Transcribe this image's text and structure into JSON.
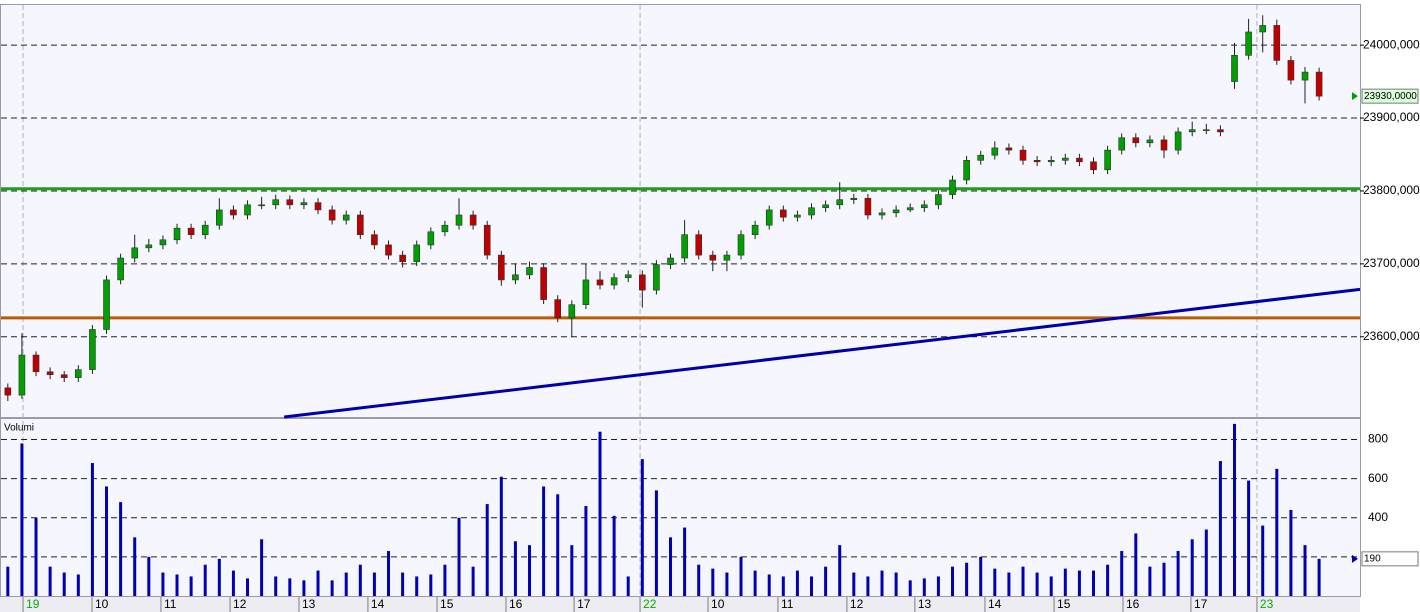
{
  "chart_data": [
    {
      "type": "candlestick",
      "xlim": [
        -0.2,
        95.9
      ],
      "ylim": [
        23490,
        24055
      ],
      "yticks": [
        {
          "value": 24000,
          "label": "24000,000"
        },
        {
          "value": 23900,
          "label": "23900,000"
        },
        {
          "value": 23800,
          "label": "23800,000"
        },
        {
          "value": 23700,
          "label": "23700,000"
        },
        {
          "value": 23600,
          "label": "23600,000"
        }
      ],
      "up_color": "#00a000",
      "down_color": "#c00000",
      "ohlc": [
        [
          23530,
          23536,
          23512,
          23520
        ],
        [
          23520,
          23605,
          23515,
          23575
        ],
        [
          23575,
          23580,
          23546,
          23552
        ],
        [
          23552,
          23558,
          23542,
          23548
        ],
        [
          23548,
          23553,
          23538,
          23544
        ],
        [
          23544,
          23561,
          23538,
          23555
        ],
        [
          23555,
          23616,
          23549,
          23610
        ],
        [
          23610,
          23684,
          23604,
          23678
        ],
        [
          23678,
          23714,
          23672,
          23708
        ],
        [
          23708,
          23740,
          23702,
          23722
        ],
        [
          23722,
          23734,
          23716,
          23726
        ],
        [
          23726,
          23739,
          23720,
          23733
        ],
        [
          23733,
          23755,
          23727,
          23749
        ],
        [
          23749,
          23755,
          23734,
          23740
        ],
        [
          23740,
          23759,
          23734,
          23753
        ],
        [
          23753,
          23790,
          23747,
          23774
        ],
        [
          23774,
          23780,
          23761,
          23767
        ],
        [
          23767,
          23787,
          23761,
          23781
        ],
        [
          23781,
          23792,
          23775,
          23781
        ],
        [
          23781,
          23795,
          23775,
          23788
        ],
        [
          23788,
          23794,
          23775,
          23781
        ],
        [
          23781,
          23790,
          23775,
          23784
        ],
        [
          23784,
          23790,
          23768,
          23774
        ],
        [
          23774,
          23780,
          23754,
          23760
        ],
        [
          23760,
          23773,
          23754,
          23767
        ],
        [
          23767,
          23773,
          23734,
          23740
        ],
        [
          23740,
          23746,
          23720,
          23726
        ],
        [
          23726,
          23732,
          23706,
          23712
        ],
        [
          23712,
          23718,
          23695,
          23703
        ],
        [
          23703,
          23732,
          23697,
          23726
        ],
        [
          23726,
          23750,
          23720,
          23744
        ],
        [
          23744,
          23759,
          23738,
          23753
        ],
        [
          23753,
          23790,
          23747,
          23767
        ],
        [
          23767,
          23773,
          23747,
          23753
        ],
        [
          23753,
          23759,
          23706,
          23712
        ],
        [
          23712,
          23718,
          23670,
          23678
        ],
        [
          23678,
          23700,
          23672,
          23685
        ],
        [
          23685,
          23703,
          23679,
          23695
        ],
        [
          23695,
          23701,
          23645,
          23651
        ],
        [
          23651,
          23657,
          23620,
          23626
        ],
        [
          23626,
          23650,
          23600,
          23644
        ],
        [
          23644,
          23700,
          23638,
          23678
        ],
        [
          23678,
          23690,
          23665,
          23671
        ],
        [
          23671,
          23687,
          23665,
          23681
        ],
        [
          23681,
          23691,
          23675,
          23685
        ],
        [
          23685,
          23691,
          23640,
          23664
        ],
        [
          23664,
          23705,
          23658,
          23699
        ],
        [
          23699,
          23714,
          23693,
          23708
        ],
        [
          23708,
          23760,
          23702,
          23740
        ],
        [
          23740,
          23746,
          23706,
          23712
        ],
        [
          23712,
          23718,
          23690,
          23705
        ],
        [
          23705,
          23718,
          23690,
          23712
        ],
        [
          23712,
          23746,
          23706,
          23740
        ],
        [
          23740,
          23759,
          23734,
          23753
        ],
        [
          23753,
          23780,
          23747,
          23774
        ],
        [
          23774,
          23780,
          23758,
          23764
        ],
        [
          23764,
          23773,
          23758,
          23767
        ],
        [
          23767,
          23783,
          23761,
          23777
        ],
        [
          23777,
          23787,
          23771,
          23781
        ],
        [
          23781,
          23812,
          23775,
          23788
        ],
        [
          23788,
          23796,
          23782,
          23790
        ],
        [
          23790,
          23796,
          23761,
          23767
        ],
        [
          23767,
          23776,
          23761,
          23770
        ],
        [
          23770,
          23780,
          23764,
          23774
        ],
        [
          23774,
          23783,
          23771,
          23777
        ],
        [
          23777,
          23787,
          23771,
          23781
        ],
        [
          23781,
          23801,
          23775,
          23795
        ],
        [
          23795,
          23821,
          23789,
          23815
        ],
        [
          23815,
          23848,
          23809,
          23842
        ],
        [
          23842,
          23855,
          23836,
          23849
        ],
        [
          23849,
          23868,
          23843,
          23859
        ],
        [
          23859,
          23865,
          23850,
          23856
        ],
        [
          23856,
          23862,
          23836,
          23842
        ],
        [
          23842,
          23848,
          23834,
          23840
        ],
        [
          23840,
          23848,
          23834,
          23842
        ],
        [
          23842,
          23851,
          23836,
          23845
        ],
        [
          23845,
          23851,
          23834,
          23840
        ],
        [
          23840,
          23846,
          23823,
          23829
        ],
        [
          23829,
          23862,
          23823,
          23856
        ],
        [
          23856,
          23879,
          23850,
          23873
        ],
        [
          23873,
          23879,
          23860,
          23866
        ],
        [
          23866,
          23876,
          23860,
          23870
        ],
        [
          23870,
          23876,
          23845,
          23856
        ],
        [
          23856,
          23887,
          23850,
          23881
        ],
        [
          23881,
          23895,
          23875,
          23884
        ],
        [
          23884,
          23892,
          23878,
          23884
        ],
        [
          23884,
          23890,
          23875,
          23881
        ],
        [
          23950,
          24003,
          23940,
          23986
        ],
        [
          23986,
          24036,
          23980,
          24018
        ],
        [
          24018,
          24041,
          23990,
          24027
        ],
        [
          24027,
          24035,
          23973,
          23979
        ],
        [
          23979,
          23985,
          23946,
          23952
        ],
        [
          23952,
          23970,
          23920,
          23963
        ],
        [
          23963,
          23969,
          23924,
          23930
        ]
      ],
      "hlines": [
        {
          "value": 23803,
          "color": "#1aa01a"
        },
        {
          "value": 23626,
          "color": "#b85c00"
        }
      ],
      "trendline": {
        "x": [
          19.6,
          95.9
        ],
        "y": [
          23490,
          23665
        ],
        "color": "#0000aa"
      },
      "last_price": {
        "value": 23930,
        "label": "23930,0000"
      }
    },
    {
      "type": "bar",
      "title": "Volumi",
      "color": "#0000b4",
      "ylim": [
        0,
        900
      ],
      "yticks": [
        200,
        400,
        600,
        800
      ],
      "values": [
        150,
        780,
        400,
        150,
        120,
        110,
        680,
        560,
        480,
        300,
        200,
        120,
        110,
        100,
        160,
        190,
        130,
        90,
        290,
        100,
        90,
        80,
        130,
        80,
        120,
        160,
        120,
        230,
        120,
        100,
        110,
        160,
        400,
        150,
        470,
        610,
        280,
        260,
        560,
        520,
        260,
        460,
        840,
        410,
        100,
        700,
        540,
        300,
        350,
        160,
        140,
        120,
        200,
        130,
        110,
        100,
        130,
        100,
        150,
        260,
        120,
        100,
        130,
        120,
        80,
        90,
        100,
        150,
        170,
        200,
        140,
        120,
        150,
        120,
        100,
        140,
        130,
        130,
        160,
        230,
        320,
        150,
        170,
        230,
        290,
        340,
        690,
        880,
        590,
        360,
        650,
        440,
        260,
        190
      ],
      "last_value": 190,
      "x_labels": {
        "labels": [
          "19",
          "10",
          "11",
          "12",
          "13",
          "14",
          "15",
          "16",
          "17",
          "22",
          "10",
          "11",
          "12",
          "13",
          "14",
          "15",
          "16",
          "17",
          "23"
        ],
        "positions": [
          1.08,
          5.97,
          10.86,
          15.76,
          20.65,
          25.54,
          30.44,
          35.33,
          40.16,
          44.84,
          49.66,
          54.62,
          59.51,
          64.33,
          69.3,
          74.2,
          79.09,
          83.91,
          88.59
        ],
        "day_starts": [
          0,
          9,
          18
        ],
        "day_color": "#00b000"
      }
    }
  ]
}
